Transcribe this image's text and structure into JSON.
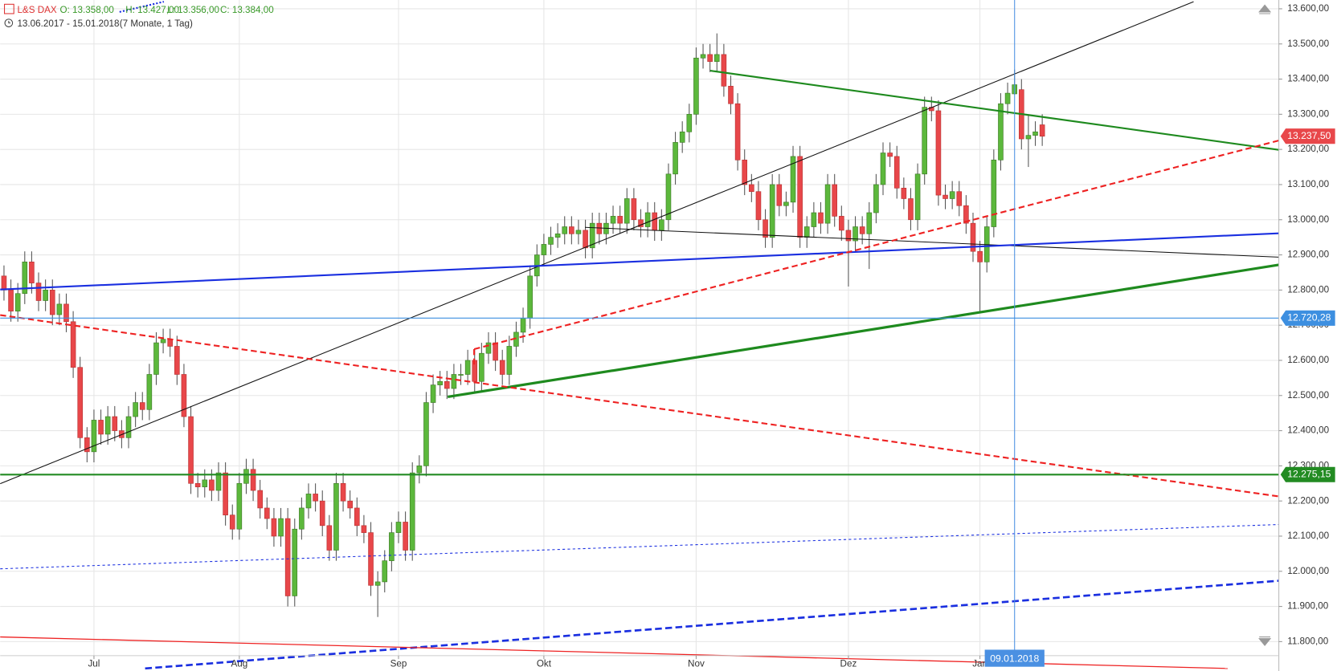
{
  "chart_data": {
    "type": "candlestick",
    "symbol": "L&S DAX",
    "ohlc_text": {
      "open": "O: 13.358,00",
      "high": "H: 13.427,00",
      "low": "L: 13.356,00",
      "close": "C: 13.384,00"
    },
    "period": "13.06.2017 - 15.01.2018",
    "interval": "(7 Monate, 1 Tag)",
    "up_color": "#5cb83c",
    "down_color": "#e8474a",
    "categories": [
      null,
      null,
      null,
      null,
      null,
      null,
      null,
      null,
      null,
      null,
      null,
      null,
      null,
      null,
      "Jul",
      null,
      null,
      null,
      null,
      null,
      null,
      null,
      null,
      null,
      null,
      null,
      null,
      null,
      null,
      null,
      null,
      null,
      null,
      null,
      null,
      "Aug",
      null,
      null,
      null,
      null,
      null,
      null,
      null,
      null,
      null,
      null,
      null,
      null,
      null,
      null,
      null,
      null,
      null,
      null,
      null,
      null,
      null,
      null,
      "Sep",
      null,
      null,
      null,
      null,
      null,
      null,
      null,
      null,
      null,
      null,
      null,
      null,
      null,
      null,
      null,
      null,
      null,
      null,
      null,
      null,
      "Okt",
      null,
      null,
      null,
      null,
      null,
      null,
      null,
      null,
      null,
      null,
      null,
      null,
      null,
      null,
      null,
      null,
      null,
      null,
      null,
      null,
      null,
      "Nov",
      null,
      null,
      null,
      null,
      null,
      null,
      null,
      null,
      null,
      null,
      null,
      null,
      null,
      null,
      null,
      null,
      null,
      null,
      null,
      null,
      null,
      "Dez",
      null,
      null,
      null,
      null,
      null,
      null,
      null,
      null,
      null,
      null,
      null,
      null,
      null,
      null,
      null,
      null,
      null,
      null,
      "Jan",
      null,
      null,
      null,
      null,
      null,
      null,
      null,
      null,
      null
    ],
    "open": [
      12770,
      12840,
      12800,
      12740,
      12790,
      12880,
      12820,
      12770,
      12800,
      12730,
      12760,
      12710,
      12580,
      12380,
      12340,
      12430,
      12390,
      12440,
      12400,
      12380,
      12440,
      12480,
      12460,
      12560,
      12650,
      12660,
      12640,
      12560,
      12440,
      12250,
      12240,
      12260,
      12230,
      12280,
      12160,
      12120,
      12250,
      12290,
      12230,
      12180,
      12150,
      12100,
      12150,
      11930,
      12120,
      12180,
      12220,
      12200,
      12130,
      12060,
      12250,
      12200,
      12180,
      12130,
      12110,
      11960,
      11970,
      12030,
      12110,
      12140,
      12060,
      12280,
      12300,
      12480,
      12530,
      12540,
      12520,
      12560,
      12560,
      12600,
      12540,
      12620,
      12650,
      12600,
      12560,
      12640,
      12680,
      12720,
      12840,
      12900,
      12930,
      12950,
      12960,
      12980,
      12960,
      12970,
      12920,
      12990,
      12960,
      12990,
      13010,
      12990,
      13060,
      13000,
      12980,
      13020,
      12970,
      13000,
      13130,
      13220,
      13250,
      13300,
      13460,
      13470,
      13450,
      13470,
      13380,
      13330,
      13170,
      13100,
      13080,
      13000,
      12950,
      13100,
      13040,
      13050,
      13180,
      12950,
      12980,
      13020,
      12990,
      13100,
      13010,
      12970,
      12940,
      12980,
      12960,
      13020,
      13100,
      13190,
      13180,
      13090,
      13060,
      13000,
      13130,
      13320,
      13310,
      13070,
      13060,
      13080,
      13040,
      12990,
      12910,
      12880,
      12980,
      13170,
      13330,
      13358,
      13370,
      13230,
      13240,
      13270
    ],
    "high": [
      12870,
      12870,
      12830,
      12820,
      12910,
      12910,
      12850,
      12830,
      12830,
      12790,
      12790,
      12740,
      12610,
      12410,
      12460,
      12460,
      12470,
      12470,
      12430,
      12470,
      12510,
      12510,
      12590,
      12680,
      12690,
      12690,
      12670,
      12590,
      12470,
      12280,
      12290,
      12290,
      12310,
      12310,
      12190,
      12280,
      12320,
      12320,
      12260,
      12210,
      12180,
      12180,
      12180,
      12150,
      12210,
      12250,
      12250,
      12230,
      12160,
      12280,
      12280,
      12230,
      12210,
      12160,
      12140,
      12000,
      12060,
      12140,
      12170,
      12170,
      12310,
      12330,
      12510,
      12560,
      12570,
      12570,
      12590,
      12590,
      12630,
      12630,
      12650,
      12680,
      12680,
      12630,
      12670,
      12710,
      12750,
      12870,
      12930,
      12960,
      12980,
      12990,
      13010,
      13010,
      13000,
      13000,
      13020,
      13020,
      13020,
      13040,
      13040,
      13090,
      13090,
      13030,
      13050,
      13050,
      13030,
      13160,
      13250,
      13280,
      13330,
      13490,
      13500,
      13500,
      13530,
      13500,
      13410,
      13360,
      13200,
      13130,
      13110,
      13030,
      13130,
      13130,
      13080,
      13210,
      13210,
      13010,
      13050,
      13050,
      13130,
      13130,
      13040,
      13000,
      13010,
      13010,
      13050,
      13130,
      13220,
      13220,
      13210,
      13120,
      13090,
      13160,
      13350,
      13350,
      13340,
      13100,
      13110,
      13110,
      13070,
      13020,
      12940,
      13010,
      13200,
      13360,
      13390,
      13427,
      13400,
      13300,
      13280,
      13300
    ],
    "low": [
      12740,
      12770,
      12710,
      12710,
      12760,
      12790,
      12740,
      12740,
      12700,
      12700,
      12680,
      12550,
      12350,
      12310,
      12310,
      12360,
      12360,
      12370,
      12350,
      12350,
      12410,
      12430,
      12430,
      12530,
      12620,
      12610,
      12530,
      12410,
      12220,
      12210,
      12210,
      12200,
      12200,
      12130,
      12090,
      12090,
      12220,
      12200,
      12150,
      12120,
      12070,
      12070,
      11900,
      11900,
      12090,
      12150,
      12170,
      12100,
      12030,
      12030,
      12170,
      12150,
      12100,
      12080,
      11930,
      11870,
      11940,
      12000,
      12080,
      12030,
      12030,
      12250,
      12270,
      12450,
      12500,
      12490,
      12490,
      12530,
      12530,
      12510,
      12510,
      12590,
      12570,
      12530,
      12530,
      12610,
      12650,
      12690,
      12810,
      12870,
      12900,
      12920,
      12930,
      12930,
      12930,
      12890,
      12890,
      12930,
      12930,
      12960,
      12960,
      12960,
      12970,
      12950,
      12950,
      12940,
      12940,
      12970,
      13100,
      13190,
      13220,
      13270,
      13430,
      13420,
      13420,
      13350,
      13300,
      13140,
      13070,
      13050,
      12970,
      12920,
      12920,
      13010,
      13010,
      13020,
      12920,
      12920,
      12950,
      12960,
      12960,
      12980,
      12940,
      12810,
      12910,
      12930,
      12860,
      12990,
      13070,
      13150,
      13060,
      13030,
      12970,
      12970,
      13100,
      13280,
      13040,
      13030,
      13030,
      13010,
      12960,
      12880,
      12740,
      12850,
      12950,
      13140,
      13300,
      13356,
      13200,
      13150,
      13210,
      13210
    ],
    "close": [
      12840,
      12800,
      12740,
      12790,
      12880,
      12820,
      12770,
      12800,
      12730,
      12760,
      12710,
      12580,
      12380,
      12340,
      12430,
      12390,
      12440,
      12400,
      12380,
      12440,
      12480,
      12460,
      12560,
      12650,
      12660,
      12640,
      12560,
      12440,
      12250,
      12240,
      12260,
      12230,
      12280,
      12160,
      12120,
      12250,
      12290,
      12230,
      12180,
      12150,
      12100,
      12150,
      11930,
      12120,
      12180,
      12220,
      12200,
      12130,
      12060,
      12250,
      12200,
      12180,
      12130,
      12110,
      11960,
      11970,
      12030,
      12110,
      12140,
      12060,
      12280,
      12300,
      12480,
      12530,
      12540,
      12520,
      12560,
      12560,
      12600,
      12540,
      12620,
      12650,
      12600,
      12560,
      12640,
      12680,
      12720,
      12840,
      12900,
      12930,
      12950,
      12960,
      12980,
      12960,
      12970,
      12920,
      12990,
      12960,
      12990,
      13010,
      12990,
      13060,
      13000,
      12980,
      13020,
      12970,
      13000,
      13130,
      13220,
      13250,
      13300,
      13460,
      13470,
      13450,
      13470,
      13380,
      13330,
      13170,
      13100,
      13080,
      13000,
      12950,
      13100,
      13040,
      13050,
      13180,
      12950,
      12980,
      13020,
      12990,
      13100,
      13010,
      12970,
      12940,
      12980,
      12960,
      13020,
      13100,
      13190,
      13180,
      13090,
      13060,
      13000,
      13130,
      13320,
      13310,
      13070,
      13060,
      13080,
      13040,
      12990,
      12910,
      12880,
      12980,
      13170,
      13330,
      13360,
      13384,
      13230,
      13240,
      13250,
      13237.5
    ],
    "ylim": [
      11760,
      13625
    ],
    "yticks": [
      {
        "value": 11800,
        "label": "11.800,00"
      },
      {
        "value": 11900,
        "label": "11.900,00"
      },
      {
        "value": 12000,
        "label": "12.000,00"
      },
      {
        "value": 12100,
        "label": "12.100,00"
      },
      {
        "value": 12200,
        "label": "12.200,00"
      },
      {
        "value": 12300,
        "label": "12.300,00"
      },
      {
        "value": 12400,
        "label": "12.400,00"
      },
      {
        "value": 12500,
        "label": "12.500,00"
      },
      {
        "value": 12600,
        "label": "12.600,00"
      },
      {
        "value": 12700,
        "label": "12.700,00"
      },
      {
        "value": 12800,
        "label": "12.800,00"
      },
      {
        "value": 12900,
        "label": "12.900,00"
      },
      {
        "value": 13000,
        "label": "13.000,00"
      },
      {
        "value": 13100,
        "label": "13.100,00"
      },
      {
        "value": 13200,
        "label": "13.200,00"
      },
      {
        "value": 13300,
        "label": "13.300,00"
      },
      {
        "value": 13400,
        "label": "13.400,00"
      },
      {
        "value": 13500,
        "label": "13.500,00"
      },
      {
        "value": 13600,
        "label": "13.600,00"
      }
    ],
    "grid": true,
    "last_price": {
      "value": 13237.5,
      "label": "13.237,50",
      "color": "#e8474a"
    },
    "hlines": [
      {
        "value": 12720.28,
        "label": "12.720,28",
        "color": "#3d8fe0"
      },
      {
        "value": 12275.15,
        "label": "12.275,15",
        "color": "#228b22"
      }
    ],
    "crosshair_label": "09.01.2018"
  }
}
